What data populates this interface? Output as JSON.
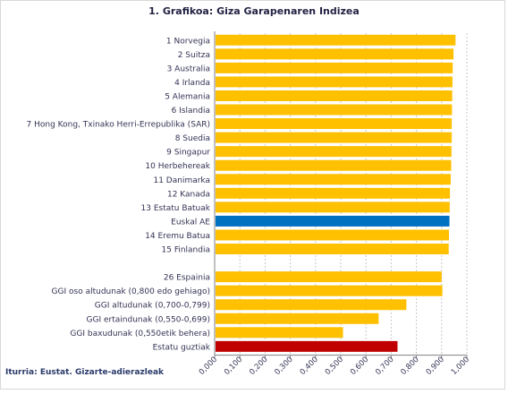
{
  "chart_data": {
    "type": "bar",
    "orientation": "horizontal",
    "title": "1. Grafikoa: Giza Garapenaren Indizea",
    "source": "Iturria: Eustat. Gizarte-adierazleak",
    "xlim": [
      0,
      1
    ],
    "xticks": [
      "0,000",
      "0,100",
      "0,200",
      "0,300",
      "0,400",
      "0,500",
      "0,600",
      "0,700",
      "0,800",
      "0,900",
      "1,000"
    ],
    "grid": true,
    "colors": {
      "default": "#ffc000",
      "highlight": "#0070c0",
      "total": "#c00000"
    },
    "rows": [
      {
        "label": "1 Norvegia",
        "value": 0.955,
        "color": "#ffc000"
      },
      {
        "label": "2 Suitza",
        "value": 0.947,
        "color": "#ffc000"
      },
      {
        "label": "3 Australia",
        "value": 0.944,
        "color": "#ffc000"
      },
      {
        "label": "4 Irlanda",
        "value": 0.943,
        "color": "#ffc000"
      },
      {
        "label": "5 Alemania",
        "value": 0.942,
        "color": "#ffc000"
      },
      {
        "label": "6 Islandia",
        "value": 0.941,
        "color": "#ffc000"
      },
      {
        "label": "7 Hong Kong, Txinako Herri-Errepublika (SAR)",
        "value": 0.94,
        "color": "#ffc000"
      },
      {
        "label": "8 Suedia",
        "value": 0.94,
        "color": "#ffc000"
      },
      {
        "label": "9 Singapur",
        "value": 0.939,
        "color": "#ffc000"
      },
      {
        "label": "10 Herbehereak",
        "value": 0.938,
        "color": "#ffc000"
      },
      {
        "label": "11 Danimarka",
        "value": 0.936,
        "color": "#ffc000"
      },
      {
        "label": "12 Kanada",
        "value": 0.933,
        "color": "#ffc000"
      },
      {
        "label": "13 Estatu Batuak",
        "value": 0.932,
        "color": "#ffc000"
      },
      {
        "label": "Euskal AE",
        "value": 0.931,
        "color": "#0070c0"
      },
      {
        "label": "14 Eremu Batua",
        "value": 0.929,
        "color": "#ffc000"
      },
      {
        "label": "15 Finlandia",
        "value": 0.928,
        "color": "#ffc000"
      },
      {
        "label": "",
        "value": null,
        "color": ""
      },
      {
        "label": "26 Espainia",
        "value": 0.9,
        "color": "#ffc000"
      },
      {
        "label": "GGI oso altudunak (0,800 edo gehiago)",
        "value": 0.903,
        "color": "#ffc000"
      },
      {
        "label": "GGI altudunak (0,700-0,799)",
        "value": 0.76,
        "color": "#ffc000"
      },
      {
        "label": "GGI ertaindunak (0,550-0,699)",
        "value": 0.65,
        "color": "#ffc000"
      },
      {
        "label": "GGI baxudunak (0,550etik behera)",
        "value": 0.509,
        "color": "#ffc000"
      },
      {
        "label": "Estatu guztiak",
        "value": 0.725,
        "color": "#c00000"
      }
    ]
  }
}
